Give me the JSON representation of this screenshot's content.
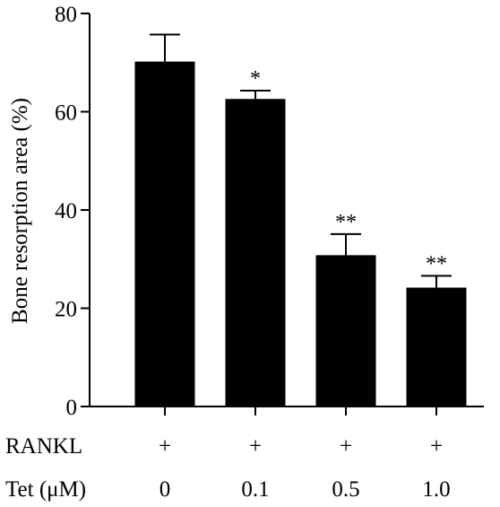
{
  "chart_data": {
    "type": "bar",
    "ylabel": "Bone resorption area (%)",
    "ylim": [
      0,
      80
    ],
    "yticks": [
      0,
      20,
      40,
      60,
      80
    ],
    "grid": false,
    "categories": [
      "0",
      "0.1",
      "0.5",
      "1.0"
    ],
    "values": [
      70.2,
      62.6,
      30.8,
      24.2
    ],
    "errors": [
      5.5,
      1.7,
      4.3,
      2.4
    ],
    "significance": [
      "",
      "*",
      "**",
      "**"
    ],
    "treatment_rows": [
      {
        "label": "RANKL",
        "values": [
          "+",
          "+",
          "+",
          "+"
        ]
      },
      {
        "label": "Tet (μM)",
        "values": [
          "0",
          "0.1",
          "0.5",
          "1.0"
        ]
      }
    ],
    "bar_color": "#000000"
  }
}
